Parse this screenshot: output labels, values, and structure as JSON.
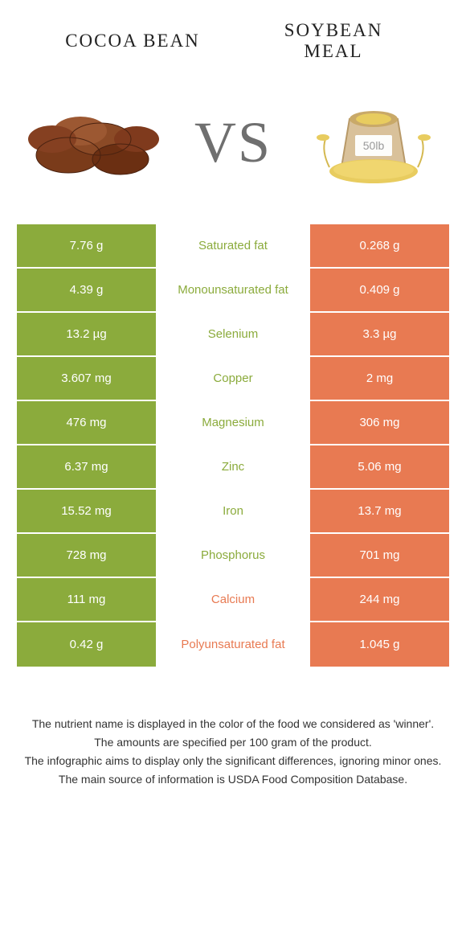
{
  "colors": {
    "left_bg": "#8bab3c",
    "right_bg": "#e87a52",
    "mid_green": "#8bab3c",
    "mid_orange": "#e87a52",
    "vs": "#6f6f6f"
  },
  "header": {
    "left_title": "COCOA BEAN",
    "right_title_line1": "SOYBEAN",
    "right_title_line2": "MEAL",
    "vs": "VS"
  },
  "rows": [
    {
      "left": "7.76 g",
      "label": "Saturated fat",
      "right": "0.268 g",
      "winner": "left"
    },
    {
      "left": "4.39 g",
      "label": "Monounsaturated fat",
      "right": "0.409 g",
      "winner": "left"
    },
    {
      "left": "13.2 µg",
      "label": "Selenium",
      "right": "3.3 µg",
      "winner": "left"
    },
    {
      "left": "3.607 mg",
      "label": "Copper",
      "right": "2 mg",
      "winner": "left"
    },
    {
      "left": "476 mg",
      "label": "Magnesium",
      "right": "306 mg",
      "winner": "left"
    },
    {
      "left": "6.37 mg",
      "label": "Zinc",
      "right": "5.06 mg",
      "winner": "left"
    },
    {
      "left": "15.52 mg",
      "label": "Iron",
      "right": "13.7 mg",
      "winner": "left"
    },
    {
      "left": "728 mg",
      "label": "Phosphorus",
      "right": "701 mg",
      "winner": "left"
    },
    {
      "left": "111 mg",
      "label": "Calcium",
      "right": "244 mg",
      "winner": "right"
    },
    {
      "left": "0.42 g",
      "label": "Polyunsaturated fat",
      "right": "1.045 g",
      "winner": "right"
    }
  ],
  "footnotes": [
    "The nutrient name is displayed in the color of the food we considered as 'winner'.",
    "The amounts are specified per 100 gram of the product.",
    "The infographic aims to display only the significant differences, ignoring minor ones.",
    "The main source of information is USDA Food Composition Database."
  ]
}
